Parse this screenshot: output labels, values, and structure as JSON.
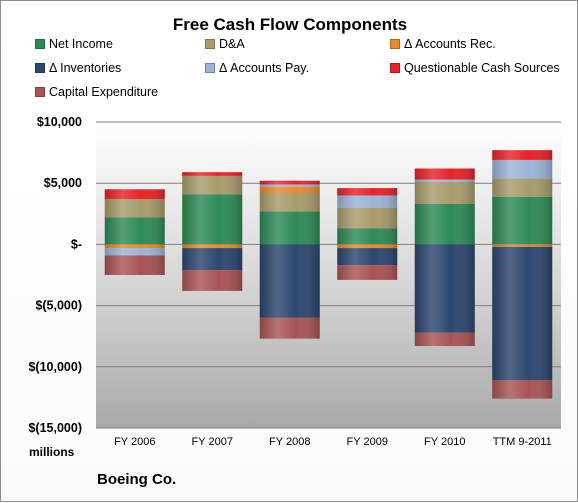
{
  "colors": {
    "net_income": "#2e8b57",
    "da": "#a89c6c",
    "accounts_rec": "#e98a2a",
    "inventories": "#2c4770",
    "accounts_pay": "#9ab4d8",
    "questionable": "#e8232a",
    "capex": "#a95454"
  },
  "chart_data": {
    "type": "bar",
    "stacked": true,
    "title": "Free Cash Flow Components",
    "company": "Boeing Co.",
    "unit_label": "millions",
    "categories": [
      "FY 2006",
      "FY 2007",
      "FY 2008",
      "FY 2009",
      "FY 2010",
      "TTM 9-2011"
    ],
    "ylim": [
      -15000,
      10000
    ],
    "yticks": [
      10000,
      5000,
      0,
      -5000,
      -10000,
      -15000
    ],
    "ytick_labels": [
      "$10,000",
      "$5,000",
      "$-",
      "$(5,000)",
      "$(10,000)",
      "$(15,000)"
    ],
    "legend_position": "top",
    "series": [
      {
        "key": "net_income",
        "name": "Net Income",
        "values": [
          2200,
          4100,
          2700,
          1300,
          3300,
          3900
        ]
      },
      {
        "key": "da",
        "name": "D&A",
        "values": [
          1500,
          1500,
          1500,
          1700,
          1800,
          1500
        ]
      },
      {
        "key": "accounts_rec",
        "name": "Δ Accounts Rec.",
        "values": [
          -300,
          -300,
          500,
          -300,
          0,
          -200
        ]
      },
      {
        "key": "inventories",
        "name": "Δ Inventories",
        "values": [
          0,
          -1800,
          -6000,
          -1400,
          -7200,
          -10900
        ]
      },
      {
        "key": "accounts_pay",
        "name": "Δ Accounts Pay.",
        "values": [
          -600,
          0,
          200,
          1000,
          200,
          1500
        ]
      },
      {
        "key": "questionable",
        "name": "Questionable Cash Sources",
        "values": [
          800,
          300,
          300,
          600,
          900,
          800
        ]
      },
      {
        "key": "capex",
        "name": "Capital Expenditure",
        "values": [
          -1600,
          -1700,
          -1700,
          -1200,
          -1100,
          -1500
        ]
      }
    ]
  }
}
